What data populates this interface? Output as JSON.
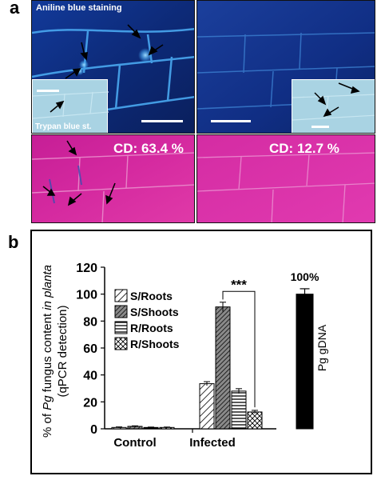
{
  "figure": {
    "panel_a_label": "a",
    "panel_b_label": "b",
    "aniline_label": "Aniline blue staining",
    "trypan_label": "Trypan blue st.",
    "cd_left": "CD: 63.4 %",
    "cd_right": "CD: 12.7 %",
    "colors": {
      "aniline_bg": "#0d2a78",
      "aniline_glow": "#3f9be6",
      "trypan_inset": "#a9d3e3",
      "trypan_bottom": "#d52aa0",
      "scale_bar": "#ffffff"
    },
    "icons": [
      "arrow-icon",
      "scale-bar-icon"
    ]
  },
  "chart_data": {
    "type": "bar",
    "ylabel": "% of Pg fungus content in planta (qPCR detection)",
    "ylabel_line1_pre": "% of ",
    "ylabel_line1_italic": "Pg",
    "ylabel_line1_mid": " fungus content ",
    "ylabel_line1_italic2": "in planta",
    "ylabel_line2": "(qPCR detection)",
    "ylim": [
      0,
      120
    ],
    "yticks": [
      "0",
      "20",
      "40",
      "60",
      "80",
      "100",
      "120"
    ],
    "groups": [
      "Control",
      "Infected"
    ],
    "legend_position": "upper-left",
    "series": [
      {
        "name": "S/Roots",
        "pattern": "diag-fwd",
        "values": [
          1.0,
          33.5
        ],
        "errors": [
          0.4,
          1.5
        ]
      },
      {
        "name": "S/Shoots",
        "pattern": "diag-dark",
        "values": [
          1.8,
          90.5
        ],
        "errors": [
          0.4,
          3.5
        ]
      },
      {
        "name": "R/Roots",
        "pattern": "horiz",
        "values": [
          1.0,
          28.0
        ],
        "errors": [
          0.3,
          1.8
        ]
      },
      {
        "name": "R/Shoots",
        "pattern": "cross",
        "values": [
          1.0,
          12.5
        ],
        "errors": [
          0.3,
          1.2
        ]
      }
    ],
    "reference_bar": {
      "label": "Pg gDNA",
      "value": 100,
      "error": 4.0,
      "value_label": "100%",
      "color": "#000000"
    },
    "significance": {
      "label": "***",
      "from_series": 1,
      "to_series": 3,
      "group": 1
    }
  }
}
